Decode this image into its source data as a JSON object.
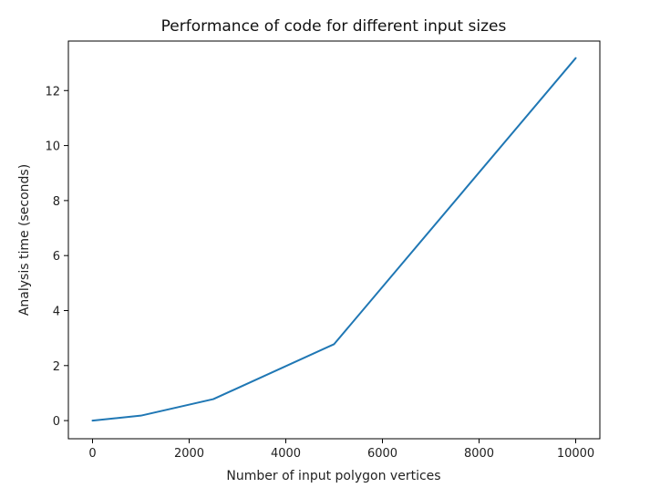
{
  "chart_data": {
    "type": "line",
    "title": "Performance of code for different input sizes",
    "xlabel": "Number of input polygon vertices",
    "ylabel": "Analysis time (seconds)",
    "xlim": [
      -500,
      10500
    ],
    "ylim": [
      -0.66,
      13.8
    ],
    "xticks": [
      0,
      2000,
      4000,
      6000,
      8000,
      10000
    ],
    "yticks": [
      0,
      2,
      4,
      6,
      8,
      10,
      12
    ],
    "grid": false,
    "series": [
      {
        "color": "#1f77b4",
        "x": [
          0,
          1000,
          2500,
          5000,
          10000
        ],
        "y": [
          0.0,
          0.18,
          0.78,
          2.78,
          13.18
        ]
      }
    ]
  }
}
